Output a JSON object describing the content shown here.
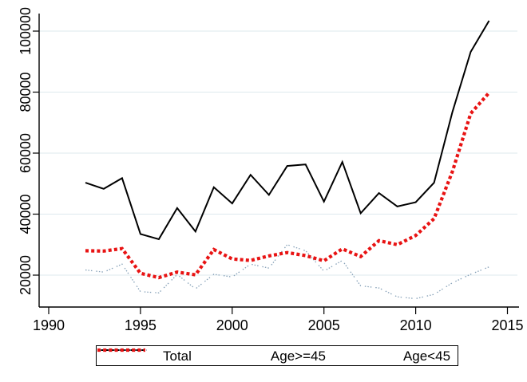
{
  "chart_data": {
    "type": "line",
    "title": "",
    "xlabel": "",
    "ylabel": "",
    "x": [
      1992,
      1993,
      1994,
      1995,
      1996,
      1997,
      1998,
      1999,
      2000,
      2001,
      2002,
      2003,
      2004,
      2005,
      2006,
      2007,
      2008,
      2009,
      2010,
      2011,
      2012,
      2013,
      2014
    ],
    "series": [
      {
        "name": "Total",
        "color": "#000000",
        "style": "solid",
        "values": [
          50300,
          48300,
          51800,
          33500,
          31800,
          42000,
          34300,
          48800,
          43500,
          52900,
          46300,
          55800,
          56300,
          44100,
          57100,
          40300,
          46900,
          42500,
          43900,
          50300,
          73500,
          93200,
          103400
        ]
      },
      {
        "name": "Age>=45",
        "color": "#86a1b8",
        "style": "dot",
        "values": [
          21700,
          21000,
          23600,
          14600,
          14200,
          20200,
          15500,
          20300,
          19400,
          23600,
          22300,
          30000,
          28000,
          21300,
          24800,
          16500,
          15800,
          12900,
          12300,
          13700,
          17500,
          20300,
          22700
        ]
      },
      {
        "name": "Age<45",
        "color": "#e81313",
        "style": "thick-dot",
        "values": [
          28000,
          27900,
          28700,
          20600,
          19200,
          21000,
          20100,
          28400,
          25300,
          24800,
          26300,
          27400,
          26400,
          24700,
          28600,
          26100,
          31300,
          30000,
          33000,
          38500,
          54000,
          73000,
          79800
        ]
      }
    ],
    "x_ticks": [
      1990,
      1995,
      2000,
      2005,
      2010,
      2015
    ],
    "y_ticks": [
      20000,
      40000,
      60000,
      80000,
      100000
    ],
    "xlim": [
      1989.5,
      2015.6
    ],
    "ylim": [
      9500,
      105800
    ],
    "grid": "horizontal-only",
    "gridline_color": "#dde9ee",
    "axis_color": "#000000",
    "legend_position": "bottom-center"
  }
}
